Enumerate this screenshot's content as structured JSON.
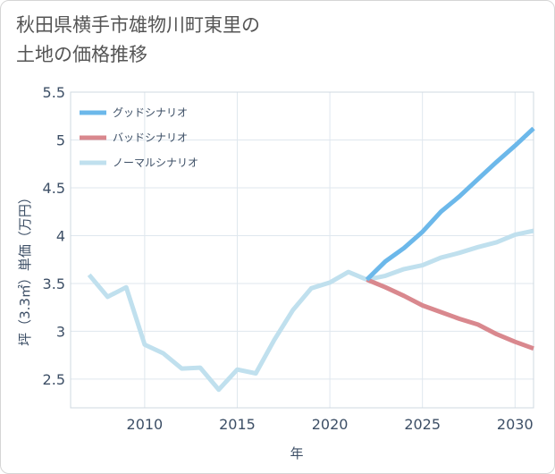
{
  "title_lines": [
    "秋田県横手市雄物川町東里の",
    "土地の価格推移"
  ],
  "chart_data": {
    "type": "line",
    "title": "秋田県横手市雄物川町東里の土地の価格推移",
    "xlabel": "年",
    "ylabel": "坪（3.3㎡）単価（万円）",
    "xlim": [
      2006,
      2031
    ],
    "ylim": [
      2.2,
      5.5
    ],
    "x_ticks": [
      2010,
      2015,
      2020,
      2025,
      2030
    ],
    "y_ticks": [
      2.5,
      3,
      3.5,
      4,
      4.5,
      5,
      5.5
    ],
    "grid": true,
    "legend_position": "top-left",
    "series": [
      {
        "name": "グッドシナリオ",
        "color": "#6cb8ea",
        "x": [
          2022,
          2023,
          2024,
          2025,
          2026,
          2027,
          2028,
          2029,
          2030,
          2031
        ],
        "values": [
          3.54,
          3.73,
          3.87,
          4.04,
          4.25,
          4.41,
          4.59,
          4.77,
          4.94,
          5.12
        ]
      },
      {
        "name": "バッドシナリオ",
        "color": "#d9888e",
        "x": [
          2022,
          2023,
          2024,
          2025,
          2026,
          2027,
          2028,
          2029,
          2030,
          2031
        ],
        "values": [
          3.54,
          3.46,
          3.37,
          3.27,
          3.2,
          3.13,
          3.07,
          2.97,
          2.89,
          2.82
        ]
      },
      {
        "name": "ノーマルシナリオ",
        "color": "#c0e0ee",
        "x": [
          2007,
          2008,
          2009,
          2010,
          2011,
          2012,
          2013,
          2014,
          2015,
          2016,
          2017,
          2018,
          2019,
          2020,
          2021,
          2022,
          2023,
          2024,
          2025,
          2026,
          2027,
          2028,
          2029,
          2030,
          2031
        ],
        "values": [
          3.59,
          3.36,
          3.46,
          2.86,
          2.77,
          2.61,
          2.62,
          2.39,
          2.6,
          2.56,
          2.91,
          3.22,
          3.45,
          3.51,
          3.62,
          3.54,
          3.58,
          3.65,
          3.69,
          3.77,
          3.82,
          3.88,
          3.93,
          4.01,
          4.05
        ]
      }
    ]
  }
}
